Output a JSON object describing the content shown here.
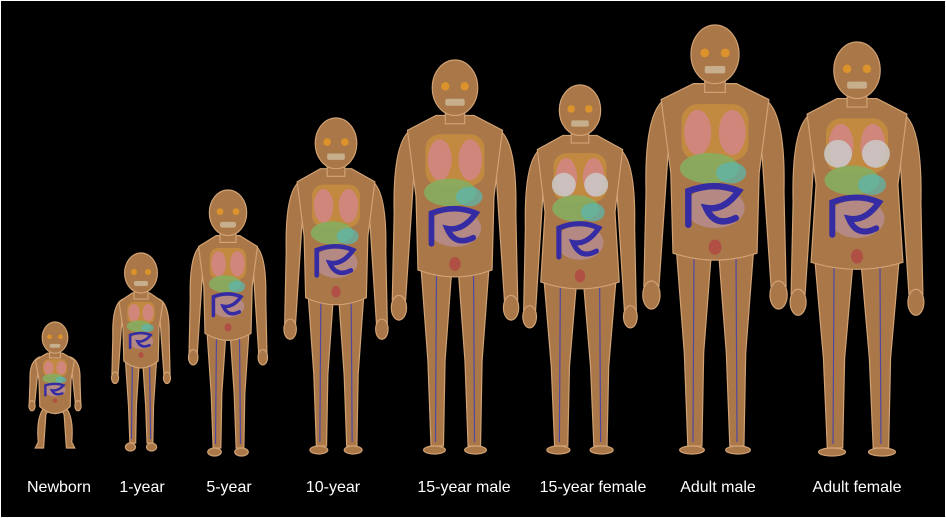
{
  "labels": [
    "Newborn",
    "1-year",
    "5-year",
    "10-year",
    "15-year male",
    "15-year female",
    "Adult male",
    "Adult female"
  ]
}
